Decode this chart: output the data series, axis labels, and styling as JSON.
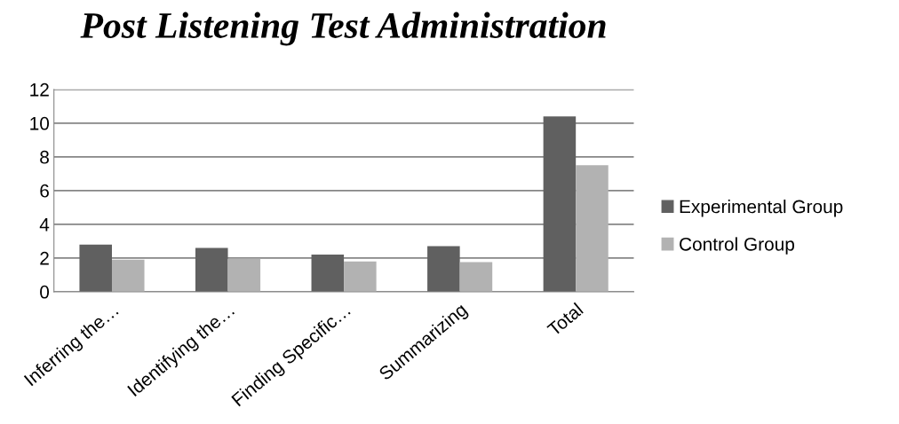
{
  "chart_data": {
    "type": "bar",
    "title": "Post Listening Test Administration",
    "categories": [
      "Inferring the…",
      "Identifying the…",
      "Finding Specific…",
      "Summarizing",
      "Total"
    ],
    "series": [
      {
        "name": "Experimental Group",
        "color": "#606060",
        "values": [
          2.8,
          2.6,
          2.2,
          2.7,
          10.4
        ]
      },
      {
        "name": "Control Group",
        "color": "#b2b2b2",
        "values": [
          1.9,
          1.95,
          1.8,
          1.75,
          7.5
        ]
      }
    ],
    "ylim": [
      0,
      12
    ],
    "yticks": [
      0,
      2,
      4,
      6,
      8,
      10,
      12
    ],
    "grid": "y",
    "legend": "right"
  }
}
